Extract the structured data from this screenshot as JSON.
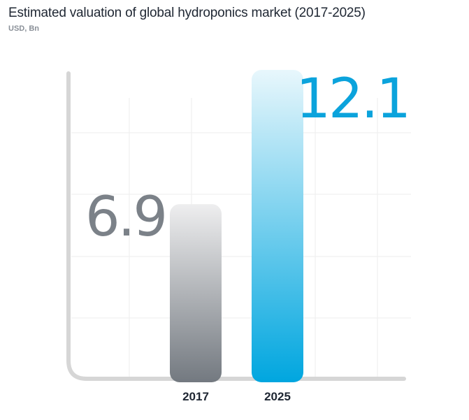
{
  "header": {
    "title": "Estimated valuation of global hydroponics market (2017-2025)",
    "subtitle": "USD, Bn"
  },
  "colors": {
    "bar_2017_top": "#eeeeef",
    "bar_2017_bottom": "#737980",
    "bar_2025_top": "#e8f7fc",
    "bar_2025_bottom": "#00a6df",
    "value_2017": "#7b8188",
    "value_2025": "#0ba3dc",
    "axis": "#d6d6d6",
    "grid": "#eeeeee",
    "tick_label": "#1f2733"
  },
  "chart_data": {
    "type": "bar",
    "title": "Estimated valuation of global hydroponics market (2017-2025)",
    "unit": "USD, Bn",
    "categories": [
      "2017",
      "2025"
    ],
    "values": [
      6.9,
      12.1
    ],
    "value_labels": [
      "6.9",
      "12.1"
    ],
    "xlabel": "",
    "ylabel": "",
    "grid": true,
    "legend": "none"
  }
}
